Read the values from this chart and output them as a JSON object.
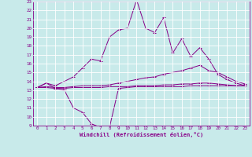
{
  "xlabel": "Windchill (Refroidissement éolien,°C)",
  "xlim": [
    0,
    23
  ],
  "ylim": [
    9,
    23
  ],
  "xticks": [
    0,
    1,
    2,
    3,
    4,
    5,
    6,
    7,
    8,
    9,
    10,
    11,
    12,
    13,
    14,
    15,
    16,
    17,
    18,
    19,
    20,
    21,
    22,
    23
  ],
  "yticks": [
    9,
    10,
    11,
    12,
    13,
    14,
    15,
    16,
    17,
    18,
    19,
    20,
    21,
    22,
    23
  ],
  "background_color": "#c8eaea",
  "grid_color": "#ffffff",
  "line_color": "#880088",
  "series": [
    [
      13.3,
      13.8,
      13.2,
      13.0,
      11.0,
      10.5,
      9.2,
      8.8,
      8.8,
      13.2,
      13.3,
      13.4,
      13.4,
      13.4,
      13.4,
      13.4,
      13.4,
      13.5,
      13.5,
      13.5,
      13.5,
      13.5,
      13.5,
      13.5
    ],
    [
      13.3,
      13.8,
      13.5,
      14.0,
      14.5,
      15.5,
      16.5,
      16.3,
      19.0,
      19.8,
      20.0,
      23.2,
      20.0,
      19.5,
      21.2,
      17.2,
      18.8,
      16.8,
      17.8,
      16.5,
      14.8,
      14.2,
      13.8,
      13.5
    ],
    [
      13.3,
      13.4,
      13.3,
      13.3,
      13.4,
      13.5,
      13.5,
      13.5,
      13.6,
      13.8,
      14.0,
      14.2,
      14.4,
      14.5,
      14.8,
      15.0,
      15.2,
      15.5,
      15.8,
      15.2,
      15.0,
      14.5,
      14.0,
      13.7
    ],
    [
      13.3,
      13.3,
      13.2,
      13.2,
      13.3,
      13.3,
      13.3,
      13.3,
      13.4,
      13.4,
      13.4,
      13.5,
      13.5,
      13.5,
      13.6,
      13.6,
      13.7,
      13.7,
      13.8,
      13.8,
      13.7,
      13.6,
      13.5,
      13.5
    ]
  ]
}
